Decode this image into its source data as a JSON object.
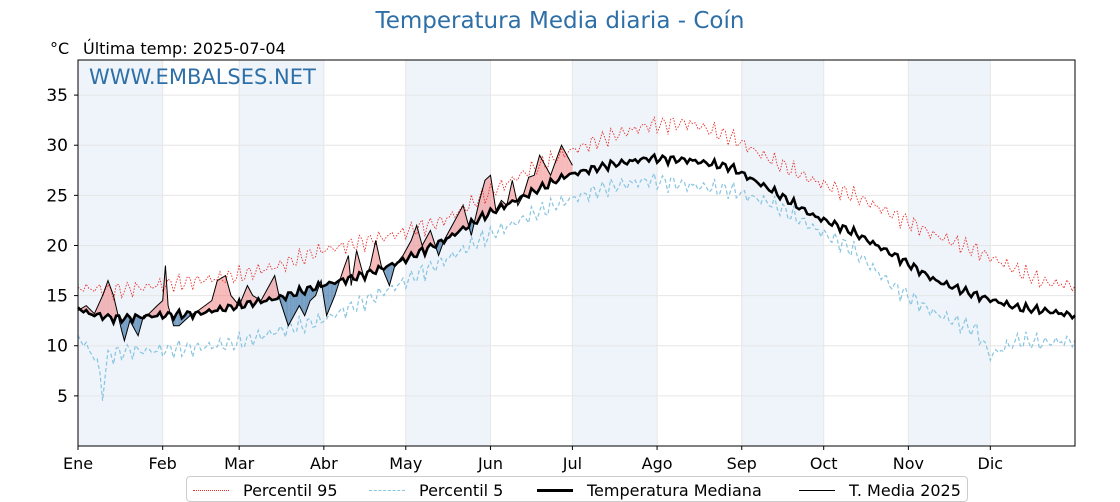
{
  "chart_data": {
    "type": "line",
    "title": "Temperatura Media diaria - Coín",
    "ylabel": "°C",
    "last_temp_label": "Última temp: 2025-07-04",
    "watermark": "WWW.EMBALSES.NET",
    "ylim": [
      0,
      38.5
    ],
    "xlim": [
      1,
      366
    ],
    "yticks": [
      5,
      10,
      15,
      20,
      25,
      30,
      35
    ],
    "month_labels": [
      "Ene",
      "Feb",
      "Mar",
      "Abr",
      "May",
      "Jun",
      "Jul",
      "Ago",
      "Sep",
      "Oct",
      "Nov",
      "Dic"
    ],
    "month_start_days": [
      1,
      32,
      60,
      91,
      121,
      152,
      182,
      213,
      244,
      274,
      305,
      335
    ],
    "grid": true,
    "shaded_months": [
      "Ene",
      "Mar",
      "May",
      "Jul",
      "Sep",
      "Nov"
    ],
    "legend_position": "bottom",
    "colors": {
      "title": "#2e6fa7",
      "watermark": "#2e6fa7",
      "p95": "#e8302a",
      "p5": "#87c4e0",
      "median": "#000000",
      "current": "#000000",
      "above_fill": "#f08080",
      "below_fill": "#4a7fb0",
      "month_shade": "#eef4fa"
    },
    "series": [
      {
        "name": "Percentil 95",
        "key": "p95",
        "style": "dotted",
        "points": [
          [
            1,
            15.8
          ],
          [
            15,
            15.5
          ],
          [
            30,
            16
          ],
          [
            45,
            16.5
          ],
          [
            60,
            17
          ],
          [
            75,
            18
          ],
          [
            90,
            19.5
          ],
          [
            105,
            20.3
          ],
          [
            120,
            21.3
          ],
          [
            135,
            22.5
          ],
          [
            150,
            25
          ],
          [
            165,
            27.3
          ],
          [
            180,
            29.3
          ],
          [
            195,
            30.8
          ],
          [
            210,
            32
          ],
          [
            225,
            32.2
          ],
          [
            240,
            30.8
          ],
          [
            255,
            28.5
          ],
          [
            270,
            26.5
          ],
          [
            285,
            25
          ],
          [
            300,
            23
          ],
          [
            315,
            21
          ],
          [
            330,
            19.5
          ],
          [
            345,
            17.5
          ],
          [
            355,
            16.3
          ],
          [
            366,
            16
          ]
        ]
      },
      {
        "name": "Percentil 5",
        "key": "p5",
        "style": "dashed",
        "points": [
          [
            1,
            11
          ],
          [
            8,
            8.5
          ],
          [
            10,
            5.2
          ],
          [
            12,
            9
          ],
          [
            20,
            9.5
          ],
          [
            30,
            9.5
          ],
          [
            45,
            9.8
          ],
          [
            60,
            10.3
          ],
          [
            75,
            11.5
          ],
          [
            90,
            12.5
          ],
          [
            105,
            14.3
          ],
          [
            120,
            16.3
          ],
          [
            135,
            18.5
          ],
          [
            150,
            20.8
          ],
          [
            165,
            22.8
          ],
          [
            180,
            24.5
          ],
          [
            195,
            25.8
          ],
          [
            210,
            26.5
          ],
          [
            225,
            26
          ],
          [
            240,
            25.5
          ],
          [
            255,
            24.2
          ],
          [
            270,
            21.8
          ],
          [
            285,
            19.5
          ],
          [
            300,
            15.8
          ],
          [
            315,
            13.2
          ],
          [
            330,
            11.5
          ],
          [
            335,
            9
          ],
          [
            345,
            10.5
          ],
          [
            355,
            10.3
          ],
          [
            366,
            10.5
          ]
        ]
      },
      {
        "name": "Temperatura Mediana",
        "key": "median",
        "style": "solid-thick",
        "points": [
          [
            1,
            13.8
          ],
          [
            5,
            13.2
          ],
          [
            15,
            12.7
          ],
          [
            30,
            13
          ],
          [
            45,
            13.2
          ],
          [
            60,
            14
          ],
          [
            75,
            14.8
          ],
          [
            90,
            16
          ],
          [
            105,
            17
          ],
          [
            120,
            18.5
          ],
          [
            135,
            20.5
          ],
          [
            150,
            23
          ],
          [
            165,
            25
          ],
          [
            180,
            27
          ],
          [
            195,
            28
          ],
          [
            210,
            28.7
          ],
          [
            225,
            28.5
          ],
          [
            240,
            27.8
          ],
          [
            255,
            25.5
          ],
          [
            270,
            23
          ],
          [
            285,
            21.3
          ],
          [
            300,
            19
          ],
          [
            315,
            16.5
          ],
          [
            330,
            15
          ],
          [
            345,
            13.8
          ],
          [
            355,
            13.5
          ],
          [
            366,
            13
          ]
        ]
      },
      {
        "name": "T. Media 2025",
        "key": "current",
        "style": "solid-thin",
        "points": [
          [
            1,
            13.5
          ],
          [
            4,
            14
          ],
          [
            7,
            13.2
          ],
          [
            10,
            15
          ],
          [
            12,
            16.5
          ],
          [
            14,
            15
          ],
          [
            17,
            11.5
          ],
          [
            18,
            10.5
          ],
          [
            20,
            12.5
          ],
          [
            23,
            11
          ],
          [
            25,
            13
          ],
          [
            27,
            13.2
          ],
          [
            30,
            14
          ],
          [
            32,
            14.5
          ],
          [
            33,
            18
          ],
          [
            34,
            14
          ],
          [
            36,
            12
          ],
          [
            38,
            12
          ],
          [
            40,
            12.5
          ],
          [
            42,
            13
          ],
          [
            45,
            13.5
          ],
          [
            50,
            14.5
          ],
          [
            52,
            16.5
          ],
          [
            55,
            17
          ],
          [
            57,
            15
          ],
          [
            60,
            14
          ],
          [
            63,
            16
          ],
          [
            65,
            15
          ],
          [
            68,
            14.5
          ],
          [
            71,
            16
          ],
          [
            73,
            17
          ],
          [
            75,
            14.5
          ],
          [
            78,
            12
          ],
          [
            82,
            14
          ],
          [
            84,
            13
          ],
          [
            86,
            14.5
          ],
          [
            88,
            15
          ],
          [
            90,
            16.5
          ],
          [
            92,
            13
          ],
          [
            95,
            15
          ],
          [
            98,
            17.5
          ],
          [
            100,
            19
          ],
          [
            101,
            16
          ],
          [
            103,
            19.5
          ],
          [
            106,
            16.5
          ],
          [
            108,
            18
          ],
          [
            110,
            20.5
          ],
          [
            112,
            18
          ],
          [
            115,
            16
          ],
          [
            117,
            18
          ],
          [
            120,
            19
          ],
          [
            123,
            20.5
          ],
          [
            125,
            22
          ],
          [
            127,
            20
          ],
          [
            130,
            21.5
          ],
          [
            133,
            19
          ],
          [
            135,
            20.5
          ],
          [
            138,
            22
          ],
          [
            142,
            24
          ],
          [
            145,
            21
          ],
          [
            148,
            24.5
          ],
          [
            150,
            26.5
          ],
          [
            152,
            27
          ],
          [
            154,
            23.5
          ],
          [
            156,
            24.5
          ],
          [
            158,
            24
          ],
          [
            160,
            26.5
          ],
          [
            162,
            24
          ],
          [
            164,
            25
          ],
          [
            166,
            26.8
          ],
          [
            168,
            27
          ],
          [
            170,
            29
          ],
          [
            172,
            28
          ],
          [
            174,
            27
          ],
          [
            176,
            28.5
          ],
          [
            178,
            30
          ],
          [
            180,
            29
          ],
          [
            182,
            28
          ]
        ]
      }
    ]
  }
}
